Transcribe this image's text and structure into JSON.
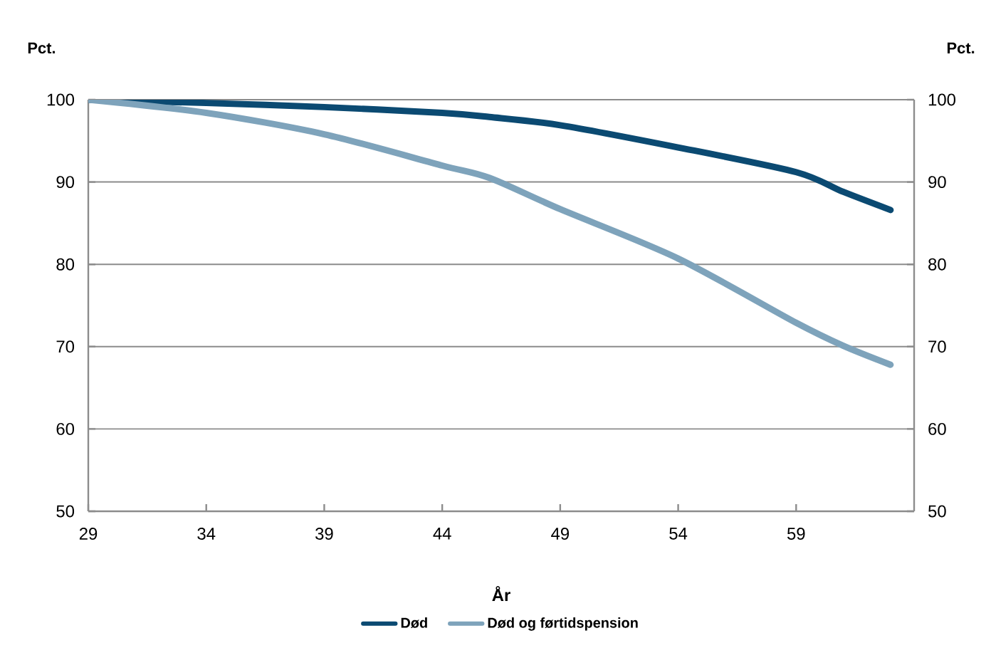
{
  "chart_data": {
    "type": "line",
    "xlabel": "År",
    "ylabel": "Pct.",
    "y2label": "Pct.",
    "xlim": [
      29,
      64
    ],
    "xticks": [
      29,
      34,
      39,
      44,
      49,
      54,
      59
    ],
    "ylim": [
      50,
      100
    ],
    "yticks": [
      50,
      60,
      70,
      80,
      90,
      100
    ],
    "y2lim": [
      50,
      100
    ],
    "y2ticks": [
      50,
      60,
      70,
      80,
      90,
      100
    ],
    "grid": "y",
    "legend": "bottom",
    "marker": "none",
    "line_style": "solid",
    "series": [
      {
        "name": "Død",
        "color": "#0b4a72",
        "x": [
          29,
          34,
          39,
          44,
          46,
          49,
          54,
          59,
          61,
          63
        ],
        "values": [
          100,
          99.6,
          99.1,
          98.4,
          97.9,
          96.9,
          94.2,
          91.2,
          88.8,
          86.6
        ]
      },
      {
        "name": "Død og førtidspension",
        "color": "#7ea3bb",
        "x": [
          29,
          34,
          39,
          44,
          46,
          49,
          54,
          59,
          61,
          63
        ],
        "values": [
          100,
          98.4,
          95.8,
          92.0,
          90.5,
          86.7,
          80.7,
          72.9,
          70.1,
          67.8
        ]
      }
    ]
  }
}
